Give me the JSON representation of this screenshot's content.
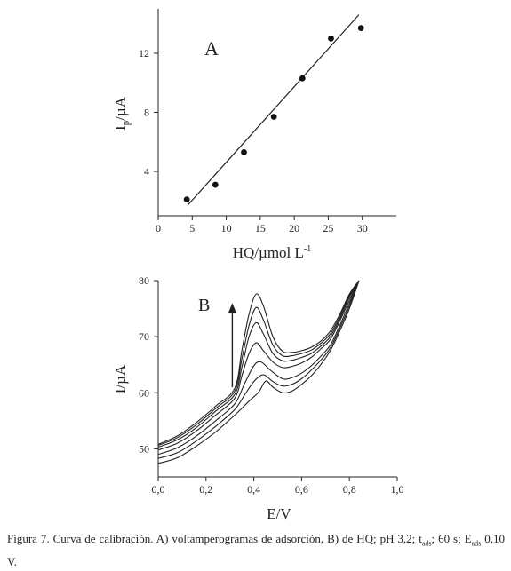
{
  "chart_data": [
    {
      "type": "scatter",
      "panel_label": "A",
      "xlabel_main": "HQ/µmol L",
      "xlabel_sup": "-1",
      "ylabel_main": "I",
      "ylabel_sub": "p",
      "ylabel_unit": "/µA",
      "xlim": [
        0,
        35
      ],
      "ylim": [
        1,
        15
      ],
      "x_ticks": [
        "0",
        "5",
        "10",
        "15",
        "20",
        "25",
        "30"
      ],
      "x_tick_values": [
        0,
        5,
        10,
        15,
        20,
        25,
        30
      ],
      "y_ticks": [
        "4",
        "8",
        "12"
      ],
      "y_tick_values": [
        4,
        8,
        12
      ],
      "points": [
        {
          "x": 4.2,
          "y": 2.1
        },
        {
          "x": 8.4,
          "y": 3.1
        },
        {
          "x": 12.6,
          "y": 5.3
        },
        {
          "x": 17.0,
          "y": 7.7
        },
        {
          "x": 21.2,
          "y": 10.3
        },
        {
          "x": 25.4,
          "y": 13.0
        },
        {
          "x": 29.8,
          "y": 13.7
        }
      ],
      "fit_line": {
        "x": [
          4.3,
          29.5
        ],
        "y": [
          1.7,
          14.6
        ]
      }
    },
    {
      "type": "line",
      "panel_label": "B",
      "xlabel": "E/V",
      "ylabel": "I/µA",
      "xlim": [
        0,
        1.0
      ],
      "ylim": [
        45,
        80
      ],
      "x_ticks": [
        "0,0",
        "0,2",
        "0,4",
        "0,6",
        "0,8",
        "1,0"
      ],
      "x_tick_values": [
        0,
        0.2,
        0.4,
        0.6,
        0.8,
        1.0
      ],
      "y_ticks": [
        "50",
        "60",
        "70",
        "80"
      ],
      "y_tick_values": [
        50,
        60,
        70,
        80
      ],
      "arrow": {
        "x": 0.31,
        "y_from": 61,
        "y_to": 76
      },
      "series": [
        {
          "values": [
            [
              0,
              47.4
            ],
            [
              0.08,
              48.4
            ],
            [
              0.16,
              50.5
            ],
            [
              0.24,
              53.0
            ],
            [
              0.32,
              56.0
            ],
            [
              0.38,
              58.5
            ],
            [
              0.42,
              60.1
            ],
            [
              0.45,
              62.1
            ],
            [
              0.48,
              61.0
            ],
            [
              0.52,
              60.0
            ],
            [
              0.56,
              60.3
            ],
            [
              0.6,
              61.5
            ],
            [
              0.64,
              63.0
            ],
            [
              0.68,
              65.0
            ],
            [
              0.72,
              67.5
            ],
            [
              0.76,
              71.0
            ],
            [
              0.8,
              75.0
            ],
            [
              0.84,
              80.0
            ]
          ]
        },
        {
          "values": [
            [
              0,
              48.3
            ],
            [
              0.08,
              49.3
            ],
            [
              0.16,
              51.4
            ],
            [
              0.24,
              54.0
            ],
            [
              0.32,
              57.0
            ],
            [
              0.36,
              59.5
            ],
            [
              0.4,
              62.0
            ],
            [
              0.44,
              63.2
            ],
            [
              0.48,
              62.0
            ],
            [
              0.52,
              61.2
            ],
            [
              0.56,
              61.5
            ],
            [
              0.6,
              62.5
            ],
            [
              0.64,
              64.0
            ],
            [
              0.68,
              65.8
            ],
            [
              0.72,
              68.0
            ],
            [
              0.76,
              71.5
            ],
            [
              0.8,
              75.5
            ],
            [
              0.84,
              80.0
            ]
          ]
        },
        {
          "values": [
            [
              0,
              49.0
            ],
            [
              0.08,
              50.2
            ],
            [
              0.16,
              52.3
            ],
            [
              0.24,
              55.0
            ],
            [
              0.32,
              58.0
            ],
            [
              0.36,
              61.5
            ],
            [
              0.4,
              64.8
            ],
            [
              0.43,
              65.5
            ],
            [
              0.47,
              64.0
            ],
            [
              0.52,
              62.5
            ],
            [
              0.56,
              62.7
            ],
            [
              0.6,
              63.5
            ],
            [
              0.64,
              64.8
            ],
            [
              0.68,
              66.5
            ],
            [
              0.72,
              68.5
            ],
            [
              0.76,
              72.0
            ],
            [
              0.8,
              76.0
            ],
            [
              0.84,
              80.0
            ]
          ]
        },
        {
          "values": [
            [
              0,
              49.8
            ],
            [
              0.08,
              51.0
            ],
            [
              0.16,
              53.2
            ],
            [
              0.24,
              56.0
            ],
            [
              0.32,
              59.0
            ],
            [
              0.35,
              63.0
            ],
            [
              0.38,
              67.0
            ],
            [
              0.41,
              68.9
            ],
            [
              0.44,
              67.5
            ],
            [
              0.48,
              65.5
            ],
            [
              0.52,
              64.5
            ],
            [
              0.56,
              64.7
            ],
            [
              0.6,
              65.3
            ],
            [
              0.64,
              66.3
            ],
            [
              0.68,
              67.8
            ],
            [
              0.72,
              69.5
            ],
            [
              0.76,
              72.8
            ],
            [
              0.8,
              76.5
            ],
            [
              0.84,
              80.0
            ]
          ]
        },
        {
          "values": [
            [
              0,
              50.3
            ],
            [
              0.08,
              51.6
            ],
            [
              0.16,
              53.8
            ],
            [
              0.24,
              56.7
            ],
            [
              0.32,
              59.7
            ],
            [
              0.35,
              64.5
            ],
            [
              0.38,
              70.0
            ],
            [
              0.41,
              72.5
            ],
            [
              0.44,
              70.5
            ],
            [
              0.48,
              67.0
            ],
            [
              0.52,
              65.7
            ],
            [
              0.56,
              65.8
            ],
            [
              0.6,
              66.3
            ],
            [
              0.64,
              67.0
            ],
            [
              0.68,
              68.3
            ],
            [
              0.72,
              70.0
            ],
            [
              0.76,
              73.2
            ],
            [
              0.8,
              77.0
            ],
            [
              0.84,
              80.0
            ]
          ]
        },
        {
          "values": [
            [
              0,
              50.6
            ],
            [
              0.08,
              52.0
            ],
            [
              0.16,
              54.3
            ],
            [
              0.24,
              57.2
            ],
            [
              0.32,
              60.3
            ],
            [
              0.35,
              66.0
            ],
            [
              0.38,
              72.0
            ],
            [
              0.41,
              75.2
            ],
            [
              0.44,
              73.0
            ],
            [
              0.48,
              68.5
            ],
            [
              0.52,
              66.6
            ],
            [
              0.56,
              66.6
            ],
            [
              0.6,
              67.0
            ],
            [
              0.64,
              67.6
            ],
            [
              0.68,
              68.8
            ],
            [
              0.72,
              70.5
            ],
            [
              0.76,
              73.6
            ],
            [
              0.8,
              77.3
            ],
            [
              0.84,
              80.0
            ]
          ]
        },
        {
          "values": [
            [
              0,
              50.8
            ],
            [
              0.08,
              52.3
            ],
            [
              0.16,
              54.7
            ],
            [
              0.24,
              57.6
            ],
            [
              0.32,
              60.8
            ],
            [
              0.35,
              67.5
            ],
            [
              0.38,
              74.0
            ],
            [
              0.41,
              77.6
            ],
            [
              0.44,
              75.5
            ],
            [
              0.48,
              70.0
            ],
            [
              0.52,
              67.4
            ],
            [
              0.56,
              67.2
            ],
            [
              0.6,
              67.5
            ],
            [
              0.64,
              68.1
            ],
            [
              0.68,
              69.2
            ],
            [
              0.72,
              71.0
            ],
            [
              0.76,
              74.0
            ],
            [
              0.8,
              77.6
            ],
            [
              0.84,
              80.0
            ]
          ]
        }
      ]
    }
  ],
  "caption": {
    "part1": "Figura 7. Curva de calibración. A) voltamperogramas de adsorción, B) de HQ; pH 3,2; t",
    "sub1": "ads",
    "part2": "; 60 s; E",
    "sub2": "ads",
    "part3": " 0,10 V."
  }
}
